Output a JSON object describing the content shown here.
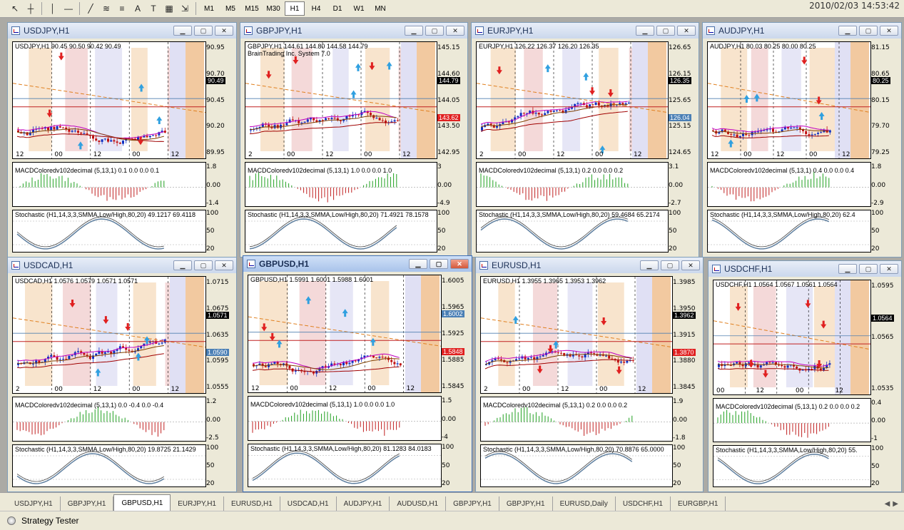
{
  "toolbar": {
    "tools": [
      {
        "name": "cursor-tool-icon",
        "glyph": "↖"
      },
      {
        "name": "crosshair-tool-icon",
        "glyph": "┼"
      },
      {
        "name": "vertical-line-tool-icon",
        "glyph": "│"
      },
      {
        "name": "horizontal-line-tool-icon",
        "glyph": "—"
      },
      {
        "name": "trendline-tool-icon",
        "glyph": "╱"
      },
      {
        "name": "channel-tool-icon",
        "glyph": "≋"
      },
      {
        "name": "fibonacci-tool-icon",
        "glyph": "≡"
      },
      {
        "name": "text-tool-icon",
        "glyph": "A"
      },
      {
        "name": "text-label-tool-icon",
        "glyph": "T"
      },
      {
        "name": "grid-tool-icon",
        "glyph": "▦"
      },
      {
        "name": "arrows-tool-icon",
        "glyph": "⇲"
      }
    ],
    "timeframes": [
      "M1",
      "M5",
      "M15",
      "M30",
      "H1",
      "H4",
      "D1",
      "W1",
      "MN"
    ],
    "active_timeframe": "H1"
  },
  "clock": "2010/02/03 14:53:42",
  "windows": [
    {
      "title": "USDJPY,H1",
      "header": "USDJPY,H1  90.45 90.50 90.42 90.49",
      "header2": "",
      "prices": [
        "90.95",
        "90.70",
        "90.45",
        "90.20",
        "89.95"
      ],
      "tag_main": "90.49",
      "tag_main_color": "#000000",
      "tag_aux": "",
      "tag_aux_color": "",
      "xticks": [
        "12",
        "00",
        "12",
        "00",
        "12"
      ],
      "macd_label": "MACDColoredv102decimal (5,13,1) 0.1 0.0 0.0 0.1",
      "macd_scale": [
        "1.8",
        "0.00",
        "-1.4"
      ],
      "stoch_label": "Stochastic (H1,14,3,3,SMMA,Low/High,80,20) 49.1217 69.4118",
      "stoch_scale": [
        "100",
        "50",
        "20"
      ],
      "active": false
    },
    {
      "title": "GBPJPY,H1",
      "header": "GBPJPY,H1  144.61 144.80 144.58 144.79",
      "header2": "BrainTrading Inc. System 7.0",
      "prices": [
        "145.15",
        "144.60",
        "144.05",
        "143.50",
        "142.95"
      ],
      "tag_main": "144.79",
      "tag_main_color": "#000000",
      "tag_aux": "143.62",
      "tag_aux_color": "#e02020",
      "xticks": [
        "2",
        "00",
        "12",
        "00",
        "12"
      ],
      "macd_label": "MACDColoredv102decimal (5,13,1) 1.0 0.0 0.0 1.0",
      "macd_scale": [
        "3",
        "0.00",
        "-4.9"
      ],
      "stoch_label": "Stochastic (H1,14,3,3,SMMA,Low/High,80,20) 71.4921 78.1578",
      "stoch_scale": [
        "100",
        "50",
        "20"
      ],
      "active": false
    },
    {
      "title": "EURJPY,H1",
      "header": "EURJPY,H1  126.22 126.37 126.20 126.35",
      "header2": "",
      "prices": [
        "126.65",
        "126.15",
        "125.65",
        "125.15",
        "124.65"
      ],
      "tag_main": "126.35",
      "tag_main_color": "#000000",
      "tag_aux": "126.04",
      "tag_aux_color": "#4a7fb5",
      "xticks": [
        "2",
        "00",
        "12",
        "00",
        "12"
      ],
      "macd_label": "MACDColoredv102decimal (5,13,1) 0.2 0.0 0.0 0.2",
      "macd_scale": [
        "3.1",
        "0.00",
        "-2.7"
      ],
      "stoch_label": "Stochastic (H1,14,3,3,SMMA,Low/High,80,20) 59.4684 65.2174",
      "stoch_scale": [
        "100",
        "50",
        "20"
      ],
      "active": false
    },
    {
      "title": "AUDJPY,H1",
      "header": "AUDJPY,H1  80.03 80.25 80.00 80.25",
      "header2": "",
      "prices": [
        "81.15",
        "80.65",
        "80.15",
        "79.70",
        "79.25"
      ],
      "tag_main": "80.25",
      "tag_main_color": "#000000",
      "tag_aux": "",
      "tag_aux_color": "",
      "xticks": [
        "12",
        "00",
        "12",
        "00",
        "12"
      ],
      "macd_label": "MACDColoredv102decimal (5,13,1) 0.4 0.0 0.0 0.4",
      "macd_scale": [
        "1.8",
        "0.00",
        "-2.9"
      ],
      "stoch_label": "Stochastic (H1,14,3,3,SMMA,Low/High,80,20) 62.4",
      "stoch_scale": [
        "100",
        "50",
        "20"
      ],
      "active": false
    },
    {
      "title": "USDCAD,H1",
      "header": "USDCAD,H1  1.0576 1.0579 1.0571 1.0571",
      "header2": "",
      "prices": [
        "1.0715",
        "1.0675",
        "1.0635",
        "1.0595",
        "1.0555"
      ],
      "tag_main": "1.0571",
      "tag_main_color": "#000000",
      "tag_aux": "1.0590",
      "tag_aux_color": "#4a7fb5",
      "xticks": [
        "2",
        "00",
        "12",
        "00",
        "12"
      ],
      "macd_label": "MACDColoredv102decimal (5,13,1) 0.0 -0.4 0.0 -0.4",
      "macd_scale": [
        "1.2",
        "0.00",
        "-2.5"
      ],
      "stoch_label": "Stochastic (H1,14,3,3,SMMA,Low/High,80,20) 19.8725 21.1429",
      "stoch_scale": [
        "100",
        "50",
        "20"
      ],
      "active": false
    },
    {
      "title": "GBPUSD,H1",
      "header": "GBPUSD,H1  1.5991 1.6001 1.5988 1.6001",
      "header2": "",
      "prices": [
        "1.6005",
        "1.5965",
        "1.5925",
        "1.5885",
        "1.5845"
      ],
      "tag_main": "1.6002",
      "tag_main_color": "#4a7fb5",
      "tag_aux": "1.5848",
      "tag_aux_color": "#e02020",
      "xticks": [
        "12",
        "00",
        "12",
        "00",
        "12"
      ],
      "macd_label": "MACDColoredv102decimal (5,13,1) 1.0 0.0 0.0 1.0",
      "macd_scale": [
        "1.5",
        "0.00",
        "-4"
      ],
      "stoch_label": "Stochastic (H1,14,3,3,SMMA,Low/High,80,20) 81.1283 84.0183",
      "stoch_scale": [
        "100",
        "50",
        "20"
      ],
      "active": true
    },
    {
      "title": "EURUSD,H1",
      "header": "EURUSD,H1  1.3955 1.3965 1.3953 1.3962",
      "header2": "",
      "prices": [
        "1.3985",
        "1.3950",
        "1.3915",
        "1.3880",
        "1.3845"
      ],
      "tag_main": "1.3962",
      "tag_main_color": "#000000",
      "tag_aux": "1.3870",
      "tag_aux_color": "#e02020",
      "xticks": [
        "2",
        "00",
        "12",
        "00",
        "12"
      ],
      "macd_label": "MACDColoredv102decimal (5,13,1) 0.2 0.0 0.0 0.2",
      "macd_scale": [
        "1.9",
        "0.00",
        "-1.8"
      ],
      "stoch_label": "Stochastic (H1,14,3,3,SMMA,Low/High,80,20) 70.8876 65.0000",
      "stoch_scale": [
        "100",
        "50",
        "20"
      ],
      "active": false
    },
    {
      "title": "USDCHF,H1",
      "header": "USDCHF,H1  1.0564 1.0567 1.0561 1.0564",
      "header2": "",
      "prices": [
        "1.0595",
        "1.0565",
        "1.0535"
      ],
      "tag_main": "1.0564",
      "tag_main_color": "#000000",
      "tag_aux": "",
      "tag_aux_color": "",
      "xticks": [
        "00",
        "12",
        "00",
        "12"
      ],
      "macd_label": "MACDColoredv102decimal (5,13,1) 0.2 0.0 0.0 0.2",
      "macd_scale": [
        "0.4",
        "0.00",
        "-1"
      ],
      "stoch_label": "Stochastic (H1,14,3,3,SMMA,Low/High,80,20) 55.",
      "stoch_scale": [
        "100",
        "50",
        "20"
      ],
      "active": false
    }
  ],
  "tabs": [
    "USDJPY,H1",
    "GBPJPY,H1",
    "GBPUSD,H1",
    "EURJPY,H1",
    "EURUSD,H1",
    "USDCAD,H1",
    "AUDJPY,H1",
    "AUDUSD,H1",
    "GBPJPY,H1",
    "GBPJPY,H1",
    "EURUSD,Daily",
    "USDCHF,H1",
    "EURGBP,H1"
  ],
  "active_tab": "GBPUSD,H1",
  "status": {
    "label": "Strategy Tester"
  }
}
